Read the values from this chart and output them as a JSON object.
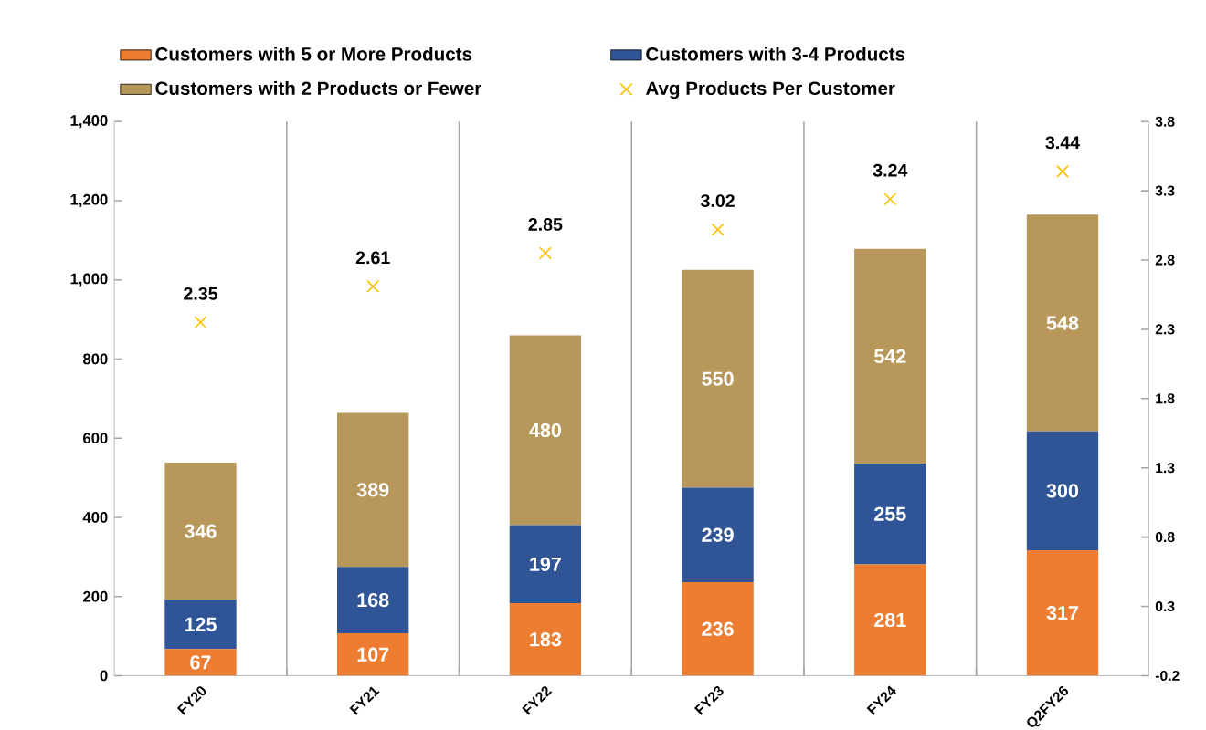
{
  "chart_data": {
    "type": "bar",
    "stacked": true,
    "categories": [
      "FY20",
      "FY21",
      "FY22",
      "FY23",
      "FY24",
      "Q2FY26"
    ],
    "series": [
      {
        "name": "Customers with 5 or More Products",
        "color": "#ed7d31",
        "values": [
          67,
          107,
          183,
          236,
          281,
          317
        ]
      },
      {
        "name": "Customers with 3-4 Products",
        "color": "#2f5597",
        "values": [
          125,
          168,
          197,
          239,
          255,
          300
        ]
      },
      {
        "name": "Customers with 2 Products or Fewer",
        "color": "#b8975a",
        "values": [
          346,
          389,
          480,
          550,
          542,
          548
        ]
      },
      {
        "name": "Avg Products Per Customer",
        "type": "scatter",
        "axis": "y2",
        "color": "#ffc000",
        "values": [
          2.35,
          2.61,
          2.85,
          3.02,
          3.24,
          3.44
        ]
      }
    ],
    "ylim": [
      0,
      1400
    ],
    "yticks": [
      0,
      200,
      400,
      600,
      800,
      {
        "value": 1000,
        "label": "1,000"
      },
      {
        "value": 1200,
        "label": "1,200"
      },
      {
        "value": 1400,
        "label": "1,400"
      }
    ],
    "y2lim": [
      -0.2,
      3.8
    ],
    "y2ticks": [
      -0.2,
      0.3,
      0.8,
      1.3,
      1.8,
      2.3,
      2.8,
      3.3,
      3.8
    ],
    "data_labels": true,
    "marker": "cross",
    "grid": "x",
    "legend": "top"
  }
}
